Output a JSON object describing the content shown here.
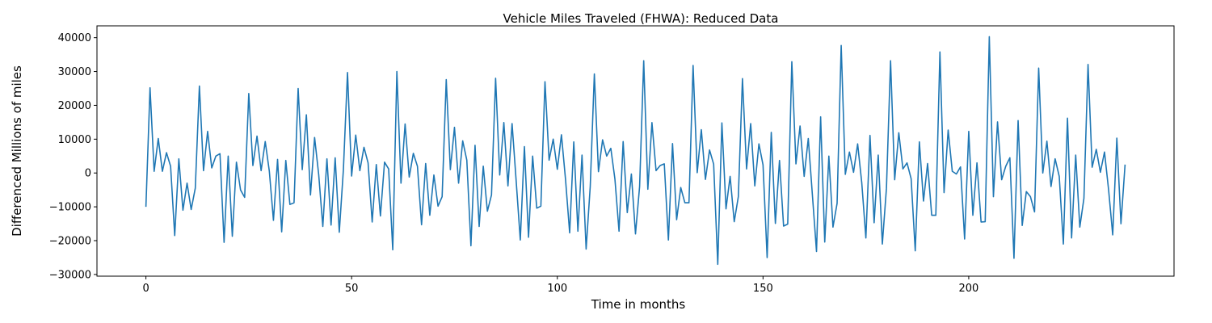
{
  "chart_data": {
    "type": "line",
    "title": "Vehicle Miles Traveled (FHWA): Reduced Data",
    "xlabel": "Time in months",
    "ylabel": "Differenced Millions of miles",
    "xlim": [
      -11.9,
      249.9
    ],
    "ylim": [
      -30500,
      43500
    ],
    "xticks": [
      0,
      50,
      100,
      150,
      200
    ],
    "yticks": [
      -30000,
      -20000,
      -10000,
      0,
      10000,
      20000,
      30000,
      40000
    ],
    "grid": false,
    "legend": "none",
    "series": [
      {
        "color": "#1f77b4",
        "x_start": 0,
        "x_step": 1,
        "values": [
          -10000,
          25200,
          500,
          10200,
          500,
          6000,
          2000,
          -18500,
          4200,
          -11000,
          -3000,
          -10800,
          -4500,
          25700,
          700,
          12300,
          1500,
          5000,
          5700,
          -20500,
          5000,
          -18700,
          3200,
          -5000,
          -7200,
          23500,
          2200,
          10900,
          700,
          9300,
          500,
          -14000,
          4000,
          -17400,
          3700,
          -9300,
          -8800,
          25000,
          1000,
          17200,
          -6500,
          10500,
          -500,
          -15800,
          4200,
          -15400,
          4500,
          -17500,
          1000,
          29700,
          -900,
          11200,
          700,
          7600,
          3000,
          -14500,
          2500,
          -12700,
          3200,
          1200,
          -22700,
          30000,
          -3000,
          14500,
          -1200,
          5800,
          2000,
          -15300,
          2800,
          -12500,
          -600,
          -9800,
          -7000,
          27600,
          1000,
          13500,
          -3000,
          9500,
          3800,
          -21500,
          8200,
          -15800,
          2000,
          -11300,
          -6500,
          28000,
          -600,
          14900,
          -3800,
          14600,
          -2400,
          -19800,
          7800,
          -19000,
          5000,
          -10400,
          -9800,
          27000,
          3800,
          10000,
          1100,
          11300,
          -2000,
          -17700,
          9200,
          -17200,
          5300,
          -22500,
          -4000,
          29300,
          400,
          9800,
          5000,
          7300,
          -1800,
          -17200,
          9300,
          -11700,
          -300,
          -18000,
          -4000,
          33200,
          -4800,
          14900,
          700,
          2200,
          2700,
          -19800,
          8700,
          -13800,
          -4300,
          -8800,
          -8800,
          31800,
          100,
          12800,
          -1900,
          6800,
          2600,
          -27000,
          14800,
          -10600,
          -1000,
          -14400,
          -7000,
          27900,
          1200,
          14600,
          -3800,
          8600,
          2400,
          -25000,
          12000,
          -14900,
          3700,
          -15700,
          -15100,
          32900,
          2700,
          13900,
          -1000,
          10200,
          -6500,
          -23200,
          16600,
          -20400,
          5000,
          -16000,
          -9000,
          37700,
          -400,
          6200,
          200,
          8600,
          -2900,
          -19200,
          11100,
          -14700,
          5300,
          -21000,
          -4500,
          33200,
          -2000,
          11900,
          1200,
          3000,
          -1700,
          -23000,
          9200,
          -8300,
          2800,
          -12500,
          -12500,
          35800,
          -5800,
          12700,
          500,
          -300,
          1800,
          -19500,
          12300,
          -12500,
          3000,
          -14500,
          -14400,
          40300,
          -7000,
          15100,
          -2000,
          2000,
          4500,
          -25200,
          15500,
          -15500,
          -5500,
          -7000,
          -11500,
          31000,
          0,
          9400,
          -4000,
          4200,
          -1000,
          -21000,
          16200,
          -19200,
          5300,
          -16000,
          -7500,
          32100,
          1700,
          7000,
          200,
          6200,
          -5000,
          -18300,
          10300,
          -15000,
          2500
        ]
      }
    ]
  }
}
